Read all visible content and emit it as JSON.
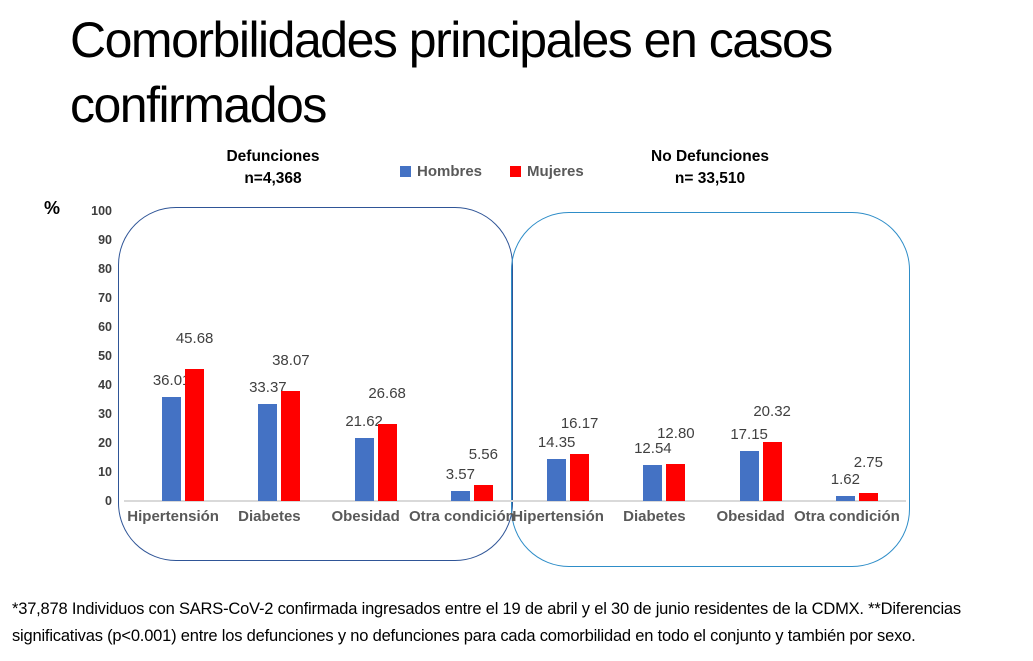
{
  "title": {
    "lines": [
      "Comorbilidades principales en casos",
      "confirmados"
    ]
  },
  "legend": {
    "items": [
      {
        "label": "Hombres",
        "color": "#4472C4"
      },
      {
        "label": "Mujeres",
        "color": "#FF0000"
      }
    ]
  },
  "y_axis": {
    "unit_label": "%",
    "ticks": [
      100,
      90,
      80,
      70,
      60,
      50,
      40,
      30,
      20,
      10,
      0
    ]
  },
  "chart_data": {
    "type": "bar",
    "title": "Comorbilidades principales en casos confirmados",
    "xlabel": "",
    "ylabel": "%",
    "ylim": [
      0,
      100
    ],
    "grid": false,
    "legend_position": "top-center",
    "categories": [
      "Hipertensión",
      "Diabetes",
      "Obesidad",
      "Otra condición"
    ],
    "panels": [
      {
        "title": "Defunciones",
        "n_label": "n=4,368",
        "border_color": "#2F5597",
        "series": [
          {
            "name": "Hombres",
            "color": "#4472C4",
            "values": [
              36.01,
              33.37,
              21.62,
              3.57
            ],
            "value_labels": [
              "36.01",
              "33.37",
              "21.62",
              "3.57"
            ]
          },
          {
            "name": "Mujeres",
            "color": "#FF0000",
            "values": [
              45.68,
              38.07,
              26.68,
              5.56
            ],
            "value_labels": [
              "45.68",
              "38.07",
              "26.68",
              "5.56"
            ]
          }
        ]
      },
      {
        "title": "No Defunciones",
        "n_label": "n= 33,510",
        "border_color": "#2E8DC8",
        "series": [
          {
            "name": "Hombres",
            "color": "#4472C4",
            "values": [
              14.35,
              12.54,
              17.15,
              1.62
            ],
            "value_labels": [
              "14.35",
              "12.54",
              "17.15",
              "1.62"
            ]
          },
          {
            "name": "Mujeres",
            "color": "#FF0000",
            "values": [
              16.17,
              12.8,
              20.32,
              2.75
            ],
            "value_labels": [
              "16.17",
              "12.80",
              "20.32",
              "2.75"
            ]
          }
        ]
      }
    ]
  },
  "footnote": "*37,878 Individuos con SARS-CoV-2 confirmada ingresados entre el 19 de abril y el 30 de junio residentes de la CDMX. **Diferencias significativas (p<0.001) entre los defunciones y no defunciones para cada comorbilidad en todo el conjunto y también por sexo."
}
